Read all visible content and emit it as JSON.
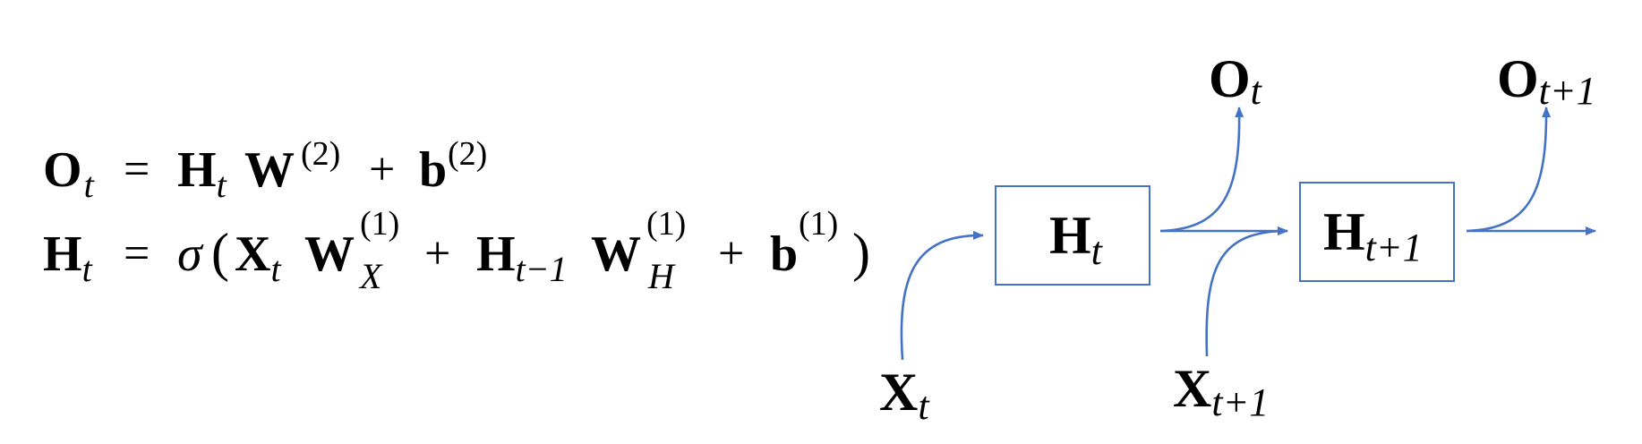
{
  "equations": {
    "eq1": {
      "lhs": "O",
      "lhs_sub": "t",
      "eq": "=",
      "h": "H",
      "h_sub": "t",
      "w": "W",
      "w_sup": "(2)",
      "plus": "+",
      "b": "b",
      "b_sup": "(2)"
    },
    "eq2": {
      "lhs": "H",
      "lhs_sub": "t",
      "eq": "=",
      "sigma": "σ",
      "lparen": "(",
      "x": "X",
      "x_sub": "t",
      "wx": "W",
      "wx_sup": "(1)",
      "wx_sub": "X",
      "plus1": "+",
      "h": "H",
      "h_sub": "t−1",
      "wh": "W",
      "wh_sup": "(1)",
      "wh_sub": "H",
      "plus2": "+",
      "b": "b",
      "b_sup": "(1)",
      "rparen": ")"
    }
  },
  "diagram": {
    "edge_color": "#4472c4",
    "nodes": {
      "h_t": {
        "main": "H",
        "sub": "t"
      },
      "h_t1": {
        "main": "H",
        "sub": "t+1"
      }
    },
    "labels": {
      "o_t": {
        "main": "O",
        "sub": "t"
      },
      "o_t1": {
        "main": "O",
        "sub": "t+1"
      },
      "x_t": {
        "main": "X",
        "sub": "t"
      },
      "x_t1": {
        "main": "X",
        "sub": "t+1"
      }
    }
  }
}
